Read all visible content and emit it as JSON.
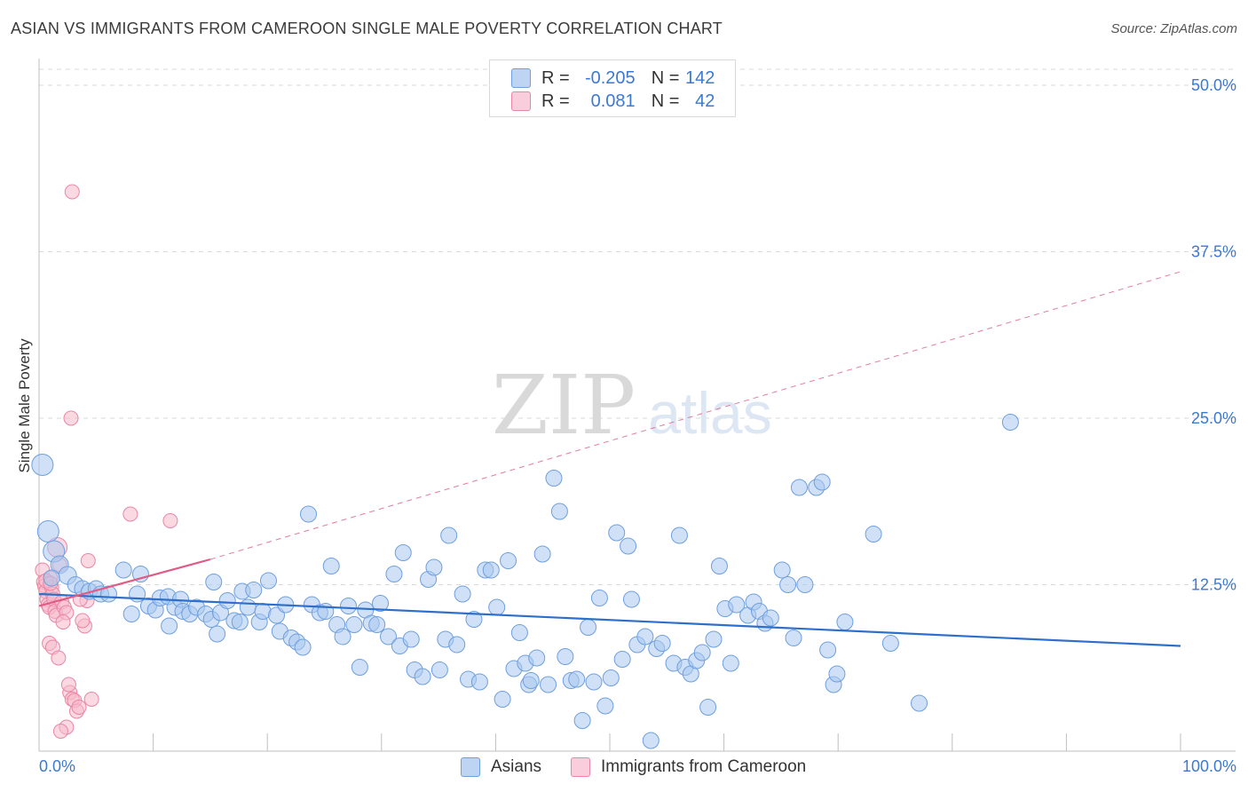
{
  "title": "ASIAN VS IMMIGRANTS FROM CAMEROON SINGLE MALE POVERTY CORRELATION CHART",
  "source": "Source: ZipAtlas.com",
  "watermark": {
    "zip": "ZIP",
    "atlas": "atlas"
  },
  "legend": {
    "r_label": "R =",
    "n_label": "N =",
    "rows": [
      {
        "series": "Asians",
        "r": "-0.205",
        "n": "142"
      },
      {
        "series": "Immigrants from Cameroon",
        "r": "0.081",
        "n": "42"
      }
    ]
  },
  "colors": {
    "asians_fill": "#a9c8f0",
    "asians_stroke": "#6e9fdf",
    "asians_line": "#2f6fcc",
    "cameroon_fill": "#f6b9cb",
    "cameroon_stroke": "#ea86a6",
    "cameroon_line": "#e05a86",
    "axis_label": "#3d79cf",
    "grid": "#d9d9d9"
  },
  "chart_data": {
    "type": "scatter",
    "title": "ASIAN VS IMMIGRANTS FROM CAMEROON SINGLE MALE POVERTY CORRELATION CHART",
    "xlabel": "",
    "ylabel": "Single Male Poverty",
    "xlim": [
      0,
      100
    ],
    "ylim": [
      0,
      50
    ],
    "x_tick_labels": [
      "0.0%",
      "100.0%"
    ],
    "y_ticks": [
      12.5,
      25.0,
      37.5,
      50.0
    ],
    "y_tick_labels": [
      "12.5%",
      "25.0%",
      "37.5%",
      "50.0%"
    ],
    "grid": "horizontal dashed",
    "legend_position": "top-center",
    "series": [
      {
        "name": "Asians",
        "r": -0.205,
        "n": 142,
        "trend": {
          "x": [
            0,
            100
          ],
          "y": [
            11.8,
            7.9
          ]
        },
        "points": [
          [
            0.3,
            21.5
          ],
          [
            0.8,
            16.5
          ],
          [
            1.3,
            15.0
          ],
          [
            1.8,
            14.0
          ],
          [
            2.5,
            13.2
          ],
          [
            3.2,
            12.5
          ],
          [
            3.8,
            12.2
          ],
          [
            4.4,
            12.0
          ],
          [
            5,
            12.2
          ],
          [
            5.4,
            11.8
          ],
          [
            6.1,
            11.8
          ],
          [
            7.4,
            13.6
          ],
          [
            8.1,
            10.3
          ],
          [
            8.6,
            11.8
          ],
          [
            8.9,
            13.3
          ],
          [
            9.6,
            10.9
          ],
          [
            10.2,
            10.6
          ],
          [
            10.6,
            11.5
          ],
          [
            11.3,
            11.6
          ],
          [
            11.4,
            9.4
          ],
          [
            11.9,
            10.8
          ],
          [
            12.4,
            11.4
          ],
          [
            12.6,
            10.5
          ],
          [
            13.2,
            10.3
          ],
          [
            13.8,
            10.8
          ],
          [
            14.6,
            10.3
          ],
          [
            15.1,
            9.9
          ],
          [
            15.3,
            12.7
          ],
          [
            15.6,
            8.8
          ],
          [
            15.9,
            10.4
          ],
          [
            16.5,
            11.3
          ],
          [
            17.1,
            9.8
          ],
          [
            17.6,
            9.7
          ],
          [
            17.8,
            12.0
          ],
          [
            18.3,
            10.8
          ],
          [
            18.8,
            12.1
          ],
          [
            19.3,
            9.7
          ],
          [
            19.6,
            10.5
          ],
          [
            20.1,
            12.8
          ],
          [
            20.8,
            10.2
          ],
          [
            21.1,
            9.0
          ],
          [
            21.6,
            11.0
          ],
          [
            22.1,
            8.5
          ],
          [
            22.6,
            8.2
          ],
          [
            23.1,
            7.8
          ],
          [
            23.6,
            17.8
          ],
          [
            23.9,
            11.0
          ],
          [
            24.6,
            10.4
          ],
          [
            25.1,
            10.5
          ],
          [
            25.6,
            13.9
          ],
          [
            26.1,
            9.5
          ],
          [
            26.6,
            8.6
          ],
          [
            27.1,
            10.9
          ],
          [
            27.6,
            9.5
          ],
          [
            28.1,
            6.3
          ],
          [
            28.6,
            10.6
          ],
          [
            29.1,
            9.6
          ],
          [
            29.6,
            9.5
          ],
          [
            29.9,
            11.1
          ],
          [
            30.6,
            8.6
          ],
          [
            31.1,
            13.3
          ],
          [
            31.6,
            7.9
          ],
          [
            31.9,
            14.9
          ],
          [
            32.6,
            8.4
          ],
          [
            32.9,
            6.1
          ],
          [
            33.6,
            5.6
          ],
          [
            34.1,
            12.9
          ],
          [
            34.6,
            13.8
          ],
          [
            35.1,
            6.1
          ],
          [
            35.6,
            8.4
          ],
          [
            35.9,
            16.2
          ],
          [
            36.6,
            8.0
          ],
          [
            37.1,
            11.8
          ],
          [
            37.6,
            5.4
          ],
          [
            38.1,
            9.9
          ],
          [
            38.6,
            5.2
          ],
          [
            39.1,
            13.6
          ],
          [
            39.6,
            13.6
          ],
          [
            40.1,
            10.8
          ],
          [
            40.6,
            3.9
          ],
          [
            41.1,
            14.3
          ],
          [
            41.6,
            6.2
          ],
          [
            42.1,
            8.9
          ],
          [
            42.6,
            6.6
          ],
          [
            42.9,
            5.0
          ],
          [
            43.1,
            5.3
          ],
          [
            43.6,
            7.0
          ],
          [
            44.1,
            14.8
          ],
          [
            44.6,
            5.0
          ],
          [
            45.1,
            20.5
          ],
          [
            45.6,
            18.0
          ],
          [
            46.1,
            7.1
          ],
          [
            46.6,
            5.3
          ],
          [
            47.1,
            5.4
          ],
          [
            47.6,
            2.3
          ],
          [
            48.1,
            9.3
          ],
          [
            48.6,
            5.2
          ],
          [
            49.1,
            11.5
          ],
          [
            49.6,
            3.4
          ],
          [
            50.1,
            5.5
          ],
          [
            50.6,
            16.4
          ],
          [
            51.1,
            6.9
          ],
          [
            51.6,
            15.4
          ],
          [
            51.9,
            11.4
          ],
          [
            52.4,
            8.0
          ],
          [
            53.1,
            8.6
          ],
          [
            53.6,
            0.8
          ],
          [
            54.1,
            7.7
          ],
          [
            54.6,
            8.1
          ],
          [
            55.6,
            6.6
          ],
          [
            56.1,
            16.2
          ],
          [
            56.6,
            6.3
          ],
          [
            57.1,
            5.8
          ],
          [
            57.6,
            6.8
          ],
          [
            58.1,
            7.4
          ],
          [
            58.6,
            3.3
          ],
          [
            59.1,
            8.4
          ],
          [
            59.6,
            13.9
          ],
          [
            60.1,
            10.7
          ],
          [
            60.6,
            6.6
          ],
          [
            61.1,
            11.0
          ],
          [
            62.1,
            10.2
          ],
          [
            62.6,
            11.2
          ],
          [
            63.1,
            10.5
          ],
          [
            63.6,
            9.6
          ],
          [
            64.1,
            10.0
          ],
          [
            65.1,
            13.6
          ],
          [
            65.6,
            12.5
          ],
          [
            66.1,
            8.5
          ],
          [
            66.6,
            19.8
          ],
          [
            67.1,
            12.5
          ],
          [
            68.1,
            19.8
          ],
          [
            68.6,
            20.2
          ],
          [
            69.1,
            7.6
          ],
          [
            69.6,
            5.0
          ],
          [
            69.9,
            5.8
          ],
          [
            70.6,
            9.7
          ],
          [
            73.1,
            16.3
          ],
          [
            74.6,
            8.1
          ],
          [
            77.1,
            3.6
          ],
          [
            85.1,
            24.7
          ],
          [
            1.1,
            13.0
          ]
        ]
      },
      {
        "name": "Immigrants from Cameroon",
        "r": 0.081,
        "n": 42,
        "trend": {
          "x": [
            0,
            15
          ],
          "y": [
            10.9,
            14.4
          ]
        },
        "trend_extended": {
          "x": [
            15,
            100
          ],
          "y": [
            14.4,
            36.0
          ]
        },
        "points": [
          [
            0.3,
            13.6
          ],
          [
            0.4,
            12.7
          ],
          [
            0.5,
            12.4
          ],
          [
            0.6,
            12.0
          ],
          [
            0.7,
            11.4
          ],
          [
            0.8,
            11.0
          ],
          [
            0.9,
            10.8
          ],
          [
            1.0,
            13.0
          ],
          [
            1.1,
            12.3
          ],
          [
            1.2,
            11.8
          ],
          [
            1.3,
            11.4
          ],
          [
            1.4,
            10.5
          ],
          [
            1.5,
            10.2
          ],
          [
            1.6,
            15.3
          ],
          [
            1.8,
            14.0
          ],
          [
            2.0,
            11.2
          ],
          [
            2.2,
            10.8
          ],
          [
            2.4,
            10.4
          ],
          [
            0.9,
            8.1
          ],
          [
            1.2,
            7.8
          ],
          [
            1.7,
            7.0
          ],
          [
            2.1,
            9.7
          ],
          [
            2.7,
            4.4
          ],
          [
            2.9,
            3.9
          ],
          [
            3.1,
            3.8
          ],
          [
            3.3,
            3.0
          ],
          [
            3.5,
            3.3
          ],
          [
            4.0,
            9.4
          ],
          [
            4.2,
            11.3
          ],
          [
            4.6,
            3.9
          ],
          [
            3.6,
            11.4
          ],
          [
            3.8,
            9.8
          ],
          [
            2.6,
            5.0
          ],
          [
            2.4,
            1.8
          ],
          [
            1.9,
            1.5
          ],
          [
            4.3,
            14.3
          ],
          [
            8.0,
            17.8
          ],
          [
            11.5,
            17.3
          ],
          [
            2.8,
            25.0
          ],
          [
            2.9,
            42.0
          ],
          [
            0.6,
            12.8
          ],
          [
            1.0,
            12.6
          ]
        ]
      }
    ]
  }
}
